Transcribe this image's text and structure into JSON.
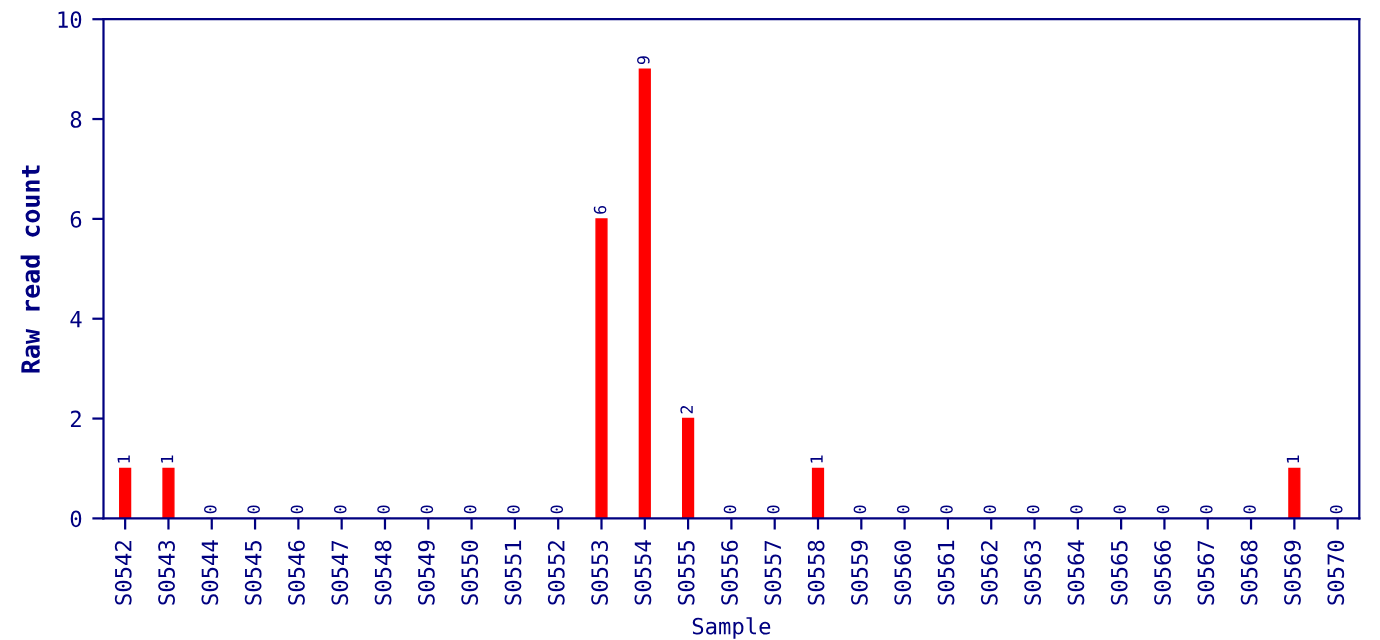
{
  "chart_data": {
    "type": "bar",
    "xlabel": "Sample",
    "ylabel": "Raw read count",
    "categories": [
      "S0542",
      "S0543",
      "S0544",
      "S0545",
      "S0546",
      "S0547",
      "S0548",
      "S0549",
      "S0550",
      "S0551",
      "S0552",
      "S0553",
      "S0554",
      "S0555",
      "S0556",
      "S0557",
      "S0558",
      "S0559",
      "S0560",
      "S0561",
      "S0562",
      "S0563",
      "S0564",
      "S0565",
      "S0566",
      "S0567",
      "S0568",
      "S0569",
      "S0570"
    ],
    "values": [
      1,
      1,
      0,
      0,
      0,
      0,
      0,
      0,
      0,
      0,
      0,
      6,
      9,
      2,
      0,
      0,
      1,
      0,
      0,
      0,
      0,
      0,
      0,
      0,
      0,
      0,
      0,
      1,
      0
    ],
    "color": "#ff0000",
    "ylim": [
      0,
      10
    ],
    "yticks": [
      0,
      2,
      4,
      6,
      8,
      10
    ],
    "grid": false,
    "data_labels": true
  }
}
